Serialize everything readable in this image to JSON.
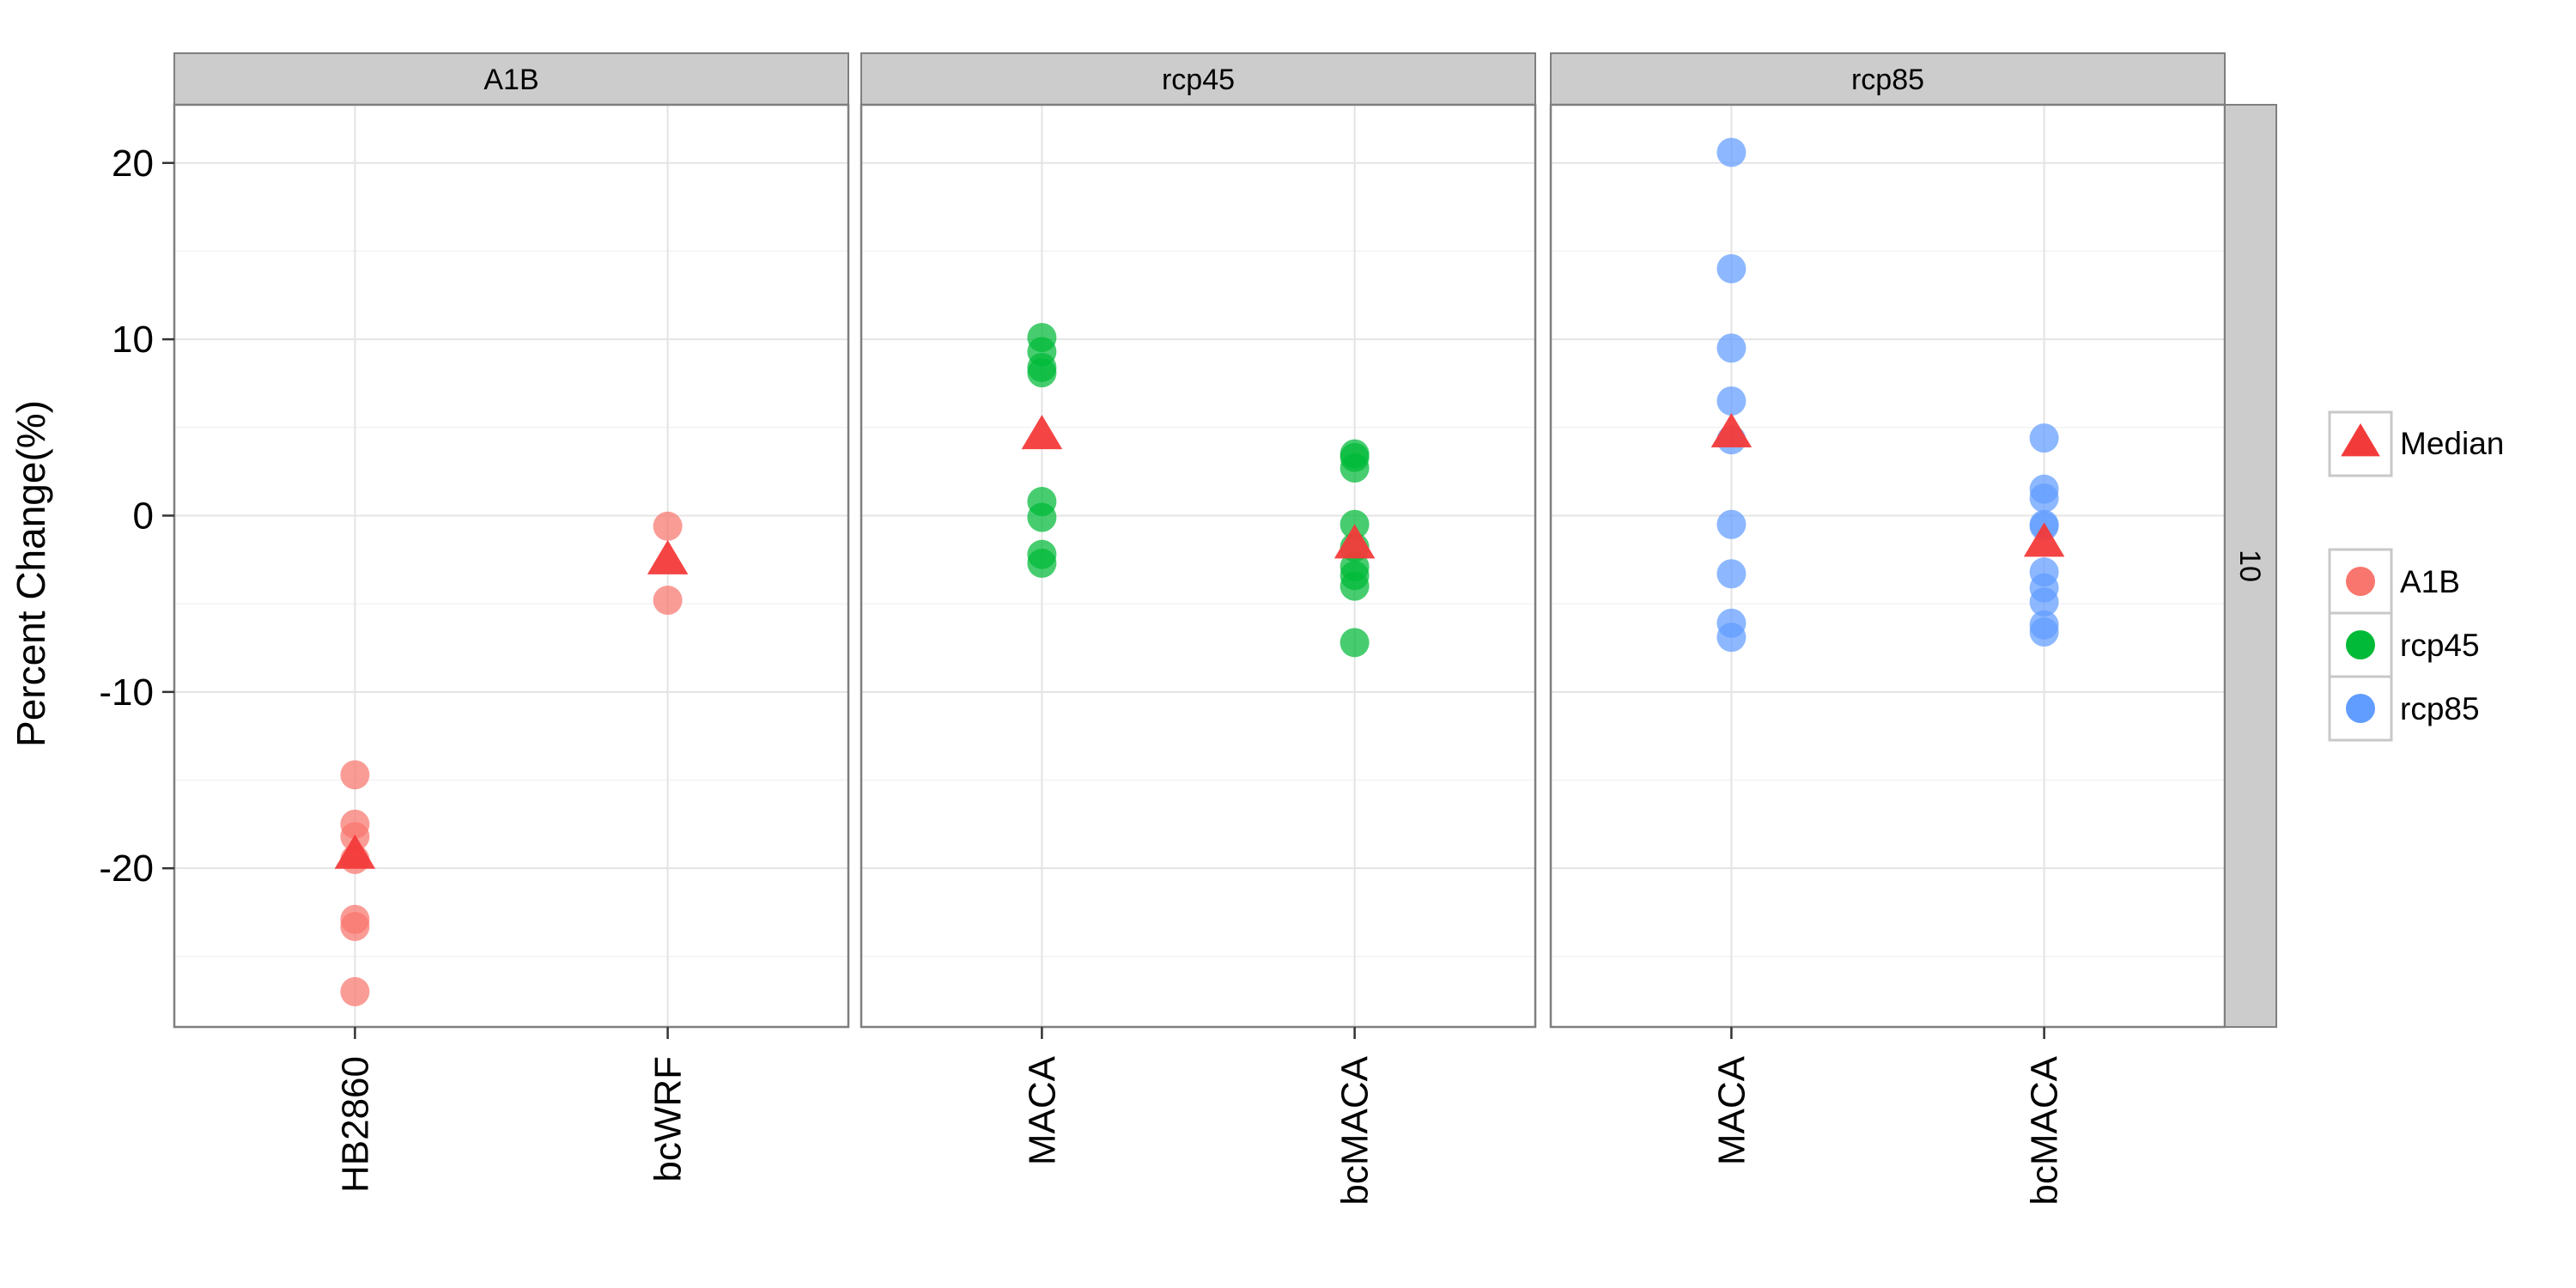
{
  "chart_data": {
    "type": "scatter",
    "ylabel": "Percent Change(%)",
    "ylim": [
      -29,
      23.3
    ],
    "yticks": [
      20,
      10,
      0,
      -10,
      -20
    ],
    "ytick_labels": [
      "20",
      "10",
      "0",
      "-10",
      "-20"
    ],
    "grid": true,
    "row_strip": "10",
    "legend": {
      "placement": "right",
      "median_label": "Median",
      "scenario_entries": [
        "A1B",
        "rcp45",
        "rcp85"
      ]
    },
    "colors": {
      "A1B": "#F8766D",
      "rcp45": "#00BA38",
      "rcp85": "#619CFF",
      "median": "#F33A3A",
      "strip_bg": "#CCCCCC",
      "panel_border": "#7F7F7F",
      "grid_major": "#E4E4E4",
      "grid_minor": "#F3F3F3"
    },
    "panels": [
      {
        "strip": "A1B",
        "scenario": "A1B",
        "categories": [
          "HB2860",
          "bcWRF"
        ],
        "points": [
          {
            "x": "HB2860",
            "y": -14.7
          },
          {
            "x": "HB2860",
            "y": -17.5
          },
          {
            "x": "HB2860",
            "y": -18.2
          },
          {
            "x": "HB2860",
            "y": -19.5
          },
          {
            "x": "HB2860",
            "y": -22.9
          },
          {
            "x": "HB2860",
            "y": -23.3
          },
          {
            "x": "HB2860",
            "y": -27.0
          },
          {
            "x": "bcWRF",
            "y": -0.6
          },
          {
            "x": "bcWRF",
            "y": -4.8
          }
        ],
        "medians": [
          {
            "x": "HB2860",
            "y": -19.3
          },
          {
            "x": "bcWRF",
            "y": -2.6
          }
        ]
      },
      {
        "strip": "rcp45",
        "scenario": "rcp45",
        "categories": [
          "MACA",
          "bcMACA"
        ],
        "points": [
          {
            "x": "MACA",
            "y": 10.1
          },
          {
            "x": "MACA",
            "y": 9.3
          },
          {
            "x": "MACA",
            "y": 8.4
          },
          {
            "x": "MACA",
            "y": 8.1
          },
          {
            "x": "MACA",
            "y": 0.8
          },
          {
            "x": "MACA",
            "y": -0.1
          },
          {
            "x": "MACA",
            "y": -2.2
          },
          {
            "x": "MACA",
            "y": -2.7
          },
          {
            "x": "bcMACA",
            "y": 3.5
          },
          {
            "x": "bcMACA",
            "y": 3.3
          },
          {
            "x": "bcMACA",
            "y": 2.7
          },
          {
            "x": "bcMACA",
            "y": -0.5
          },
          {
            "x": "bcMACA",
            "y": -1.8
          },
          {
            "x": "bcMACA",
            "y": -2.9
          },
          {
            "x": "bcMACA",
            "y": -3.4
          },
          {
            "x": "bcMACA",
            "y": -4.0
          },
          {
            "x": "bcMACA",
            "y": -7.2
          }
        ],
        "medians": [
          {
            "x": "MACA",
            "y": 4.5
          },
          {
            "x": "bcMACA",
            "y": -1.7
          }
        ]
      },
      {
        "strip": "rcp85",
        "scenario": "rcp85",
        "categories": [
          "MACA",
          "bcMACA"
        ],
        "points": [
          {
            "x": "MACA",
            "y": 20.6
          },
          {
            "x": "MACA",
            "y": 14.0
          },
          {
            "x": "MACA",
            "y": 9.5
          },
          {
            "x": "MACA",
            "y": 6.5
          },
          {
            "x": "MACA",
            "y": 4.3
          },
          {
            "x": "MACA",
            "y": -0.5
          },
          {
            "x": "MACA",
            "y": -3.3
          },
          {
            "x": "MACA",
            "y": -6.1
          },
          {
            "x": "MACA",
            "y": -6.9
          },
          {
            "x": "bcMACA",
            "y": 4.4
          },
          {
            "x": "bcMACA",
            "y": 1.5
          },
          {
            "x": "bcMACA",
            "y": 1.0
          },
          {
            "x": "bcMACA",
            "y": -0.5
          },
          {
            "x": "bcMACA",
            "y": -0.6
          },
          {
            "x": "bcMACA",
            "y": -3.2
          },
          {
            "x": "bcMACA",
            "y": -4.1
          },
          {
            "x": "bcMACA",
            "y": -4.9
          },
          {
            "x": "bcMACA",
            "y": -6.2
          },
          {
            "x": "bcMACA",
            "y": -6.6
          }
        ],
        "medians": [
          {
            "x": "MACA",
            "y": 4.6
          },
          {
            "x": "bcMACA",
            "y": -1.6
          }
        ]
      }
    ]
  }
}
